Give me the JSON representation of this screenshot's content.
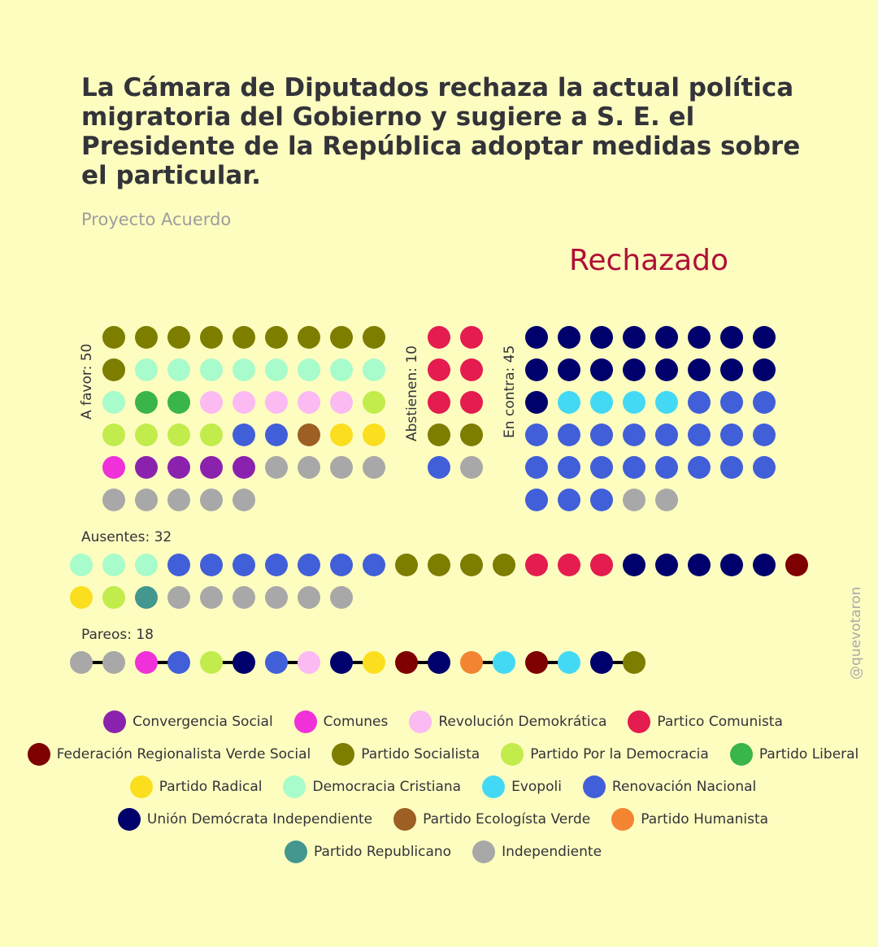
{
  "title": "La Cámara de Diputados rechaza la actual política migratoria del Gobierno y sugiere a S. E. el Presidente de la República adoptar medidas sobre el particular.",
  "subtitle": "Proyecto Acuerdo",
  "result": "Rechazado",
  "result_color": "#b01038",
  "watermark": "@quevotaron",
  "parties": {
    "CS": {
      "name": "Convergencia Social",
      "color": "#8b22ae"
    },
    "COM": {
      "name": "Comunes",
      "color": "#f030d8"
    },
    "RD": {
      "name": "Revolución Demokrática",
      "color": "#fbbaf2"
    },
    "PC": {
      "name": "Partico Comunista",
      "color": "#e41c4f"
    },
    "FRVS": {
      "name": "Federación Regionalista Verde Social",
      "color": "#7e0000"
    },
    "PS": {
      "name": "Partido Socialista",
      "color": "#7d7d00"
    },
    "PPD": {
      "name": "Partido Por la Democracia",
      "color": "#c1ec4c"
    },
    "PL": {
      "name": "Partido Liberal",
      "color": "#3ab54a"
    },
    "PR": {
      "name": "Partido Radical",
      "color": "#fbdf1e"
    },
    "DC": {
      "name": "Democracia Cristiana",
      "color": "#a8fbca"
    },
    "EVO": {
      "name": "Evopoli",
      "color": "#43d9f5"
    },
    "RN": {
      "name": "Renovación Nacional",
      "color": "#415fd8"
    },
    "UDI": {
      "name": "Unión Demócrata Independiente",
      "color": "#00006d"
    },
    "PEV": {
      "name": "Partido Ecologísta Verde",
      "color": "#9d5f23"
    },
    "PH": {
      "name": "Partido Humanista",
      "color": "#f38432"
    },
    "REP": {
      "name": "Partido Republicano",
      "color": "#43978f"
    },
    "IND": {
      "name": "Independiente",
      "color": "#a8a8a8"
    }
  },
  "legend_order": [
    "CS",
    "COM",
    "RD",
    "PC",
    "FRVS",
    "PS",
    "PPD",
    "PL",
    "PR",
    "DC",
    "EVO",
    "RN",
    "UDI",
    "PEV",
    "PH",
    "REP",
    "IND"
  ],
  "chart_data": {
    "type": "parliament-dot-chart",
    "groups": [
      {
        "key": "favor",
        "label": "A favor: 50",
        "count": 50,
        "seats": [
          "PS",
          "PS",
          "PS",
          "PS",
          "PS",
          "PS",
          "PS",
          "PS",
          "PS",
          "PS",
          "DC",
          "DC",
          "DC",
          "DC",
          "DC",
          "DC",
          "DC",
          "DC",
          "DC",
          "PL",
          "PL",
          "RD",
          "RD",
          "RD",
          "RD",
          "RD",
          "PPD",
          "PPD",
          "PPD",
          "PPD",
          "PPD",
          "RN",
          "RN",
          "PEV",
          "PR",
          "PR",
          "COM",
          "CS",
          "CS",
          "CS",
          "CS",
          "IND",
          "IND",
          "IND",
          "IND",
          "IND",
          "IND",
          "IND",
          "IND",
          "IND"
        ]
      },
      {
        "key": "abstienen",
        "label": "Abstienen: 10",
        "count": 10,
        "seats": [
          "PC",
          "PC",
          "PC",
          "PC",
          "PC",
          "PC",
          "PS",
          "PS",
          "RN",
          "IND"
        ]
      },
      {
        "key": "contra",
        "label": "En contra: 45",
        "count": 45,
        "seats": [
          "UDI",
          "UDI",
          "UDI",
          "UDI",
          "UDI",
          "UDI",
          "UDI",
          "UDI",
          "UDI",
          "UDI",
          "UDI",
          "UDI",
          "UDI",
          "UDI",
          "UDI",
          "UDI",
          "UDI",
          "EVO",
          "EVO",
          "EVO",
          "EVO",
          "RN",
          "RN",
          "RN",
          "RN",
          "RN",
          "RN",
          "RN",
          "RN",
          "RN",
          "RN",
          "RN",
          "RN",
          "RN",
          "RN",
          "RN",
          "RN",
          "RN",
          "RN",
          "RN",
          "RN",
          "RN",
          "RN",
          "IND",
          "IND"
        ]
      },
      {
        "key": "ausentes",
        "label": "Ausentes: 32",
        "count": 32,
        "seats": [
          "DC",
          "DC",
          "DC",
          "RN",
          "RN",
          "RN",
          "RN",
          "RN",
          "RN",
          "RN",
          "PS",
          "PS",
          "PS",
          "PS",
          "PC",
          "PC",
          "PC",
          "UDI",
          "UDI",
          "UDI",
          "UDI",
          "UDI",
          "FRVS",
          "PR",
          "PPD",
          "REP",
          "IND",
          "IND",
          "IND",
          "IND",
          "IND",
          "IND"
        ]
      },
      {
        "key": "pareos",
        "label": "Pareos: 18",
        "count": 18,
        "pairs": [
          [
            "IND",
            "IND"
          ],
          [
            "COM",
            "RN"
          ],
          [
            "PPD",
            "UDI"
          ],
          [
            "RN",
            "RD"
          ],
          [
            "UDI",
            "PR"
          ],
          [
            "FRVS",
            "UDI"
          ],
          [
            "PH",
            "EVO"
          ],
          [
            "FRVS",
            "EVO"
          ],
          [
            "UDI",
            "PS"
          ]
        ]
      }
    ]
  }
}
